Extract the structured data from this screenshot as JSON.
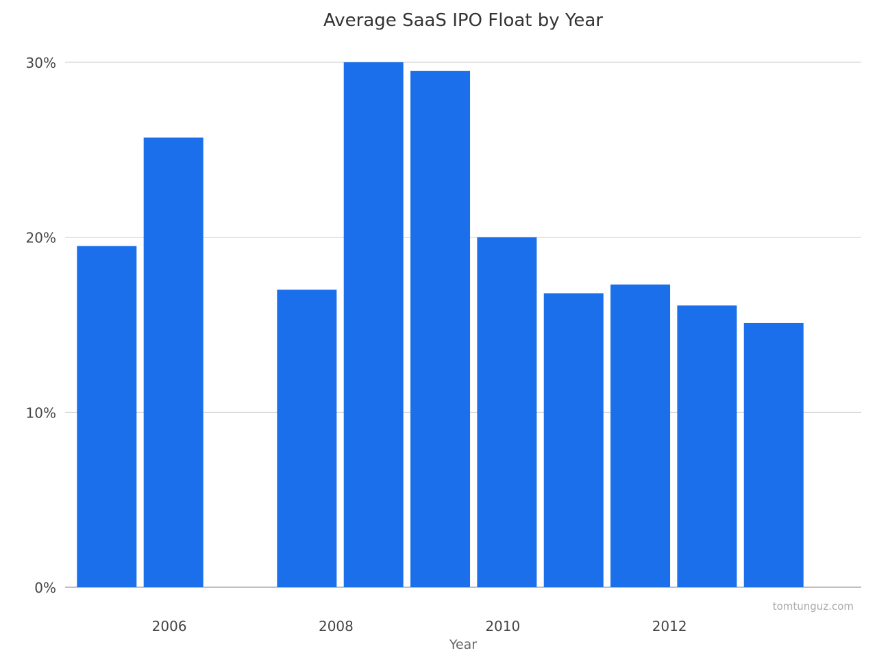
{
  "chart_data": {
    "type": "bar",
    "title": "Average SaaS IPO Float by Year",
    "xlabel": "Year",
    "ylabel": "",
    "watermark": "tomtunguz.com",
    "x_tick_labels": [
      "2006",
      "2008",
      "2010",
      "2012"
    ],
    "x_tick_values": [
      2006,
      2008,
      2010,
      2012
    ],
    "y_tick_labels": [
      "0%",
      "10%",
      "20%",
      "30%"
    ],
    "y_tick_values": [
      0,
      10,
      20,
      30
    ],
    "ylim": [
      0,
      30
    ],
    "xlim": [
      2004.75,
      2014.3
    ],
    "grid": true,
    "legend": "none",
    "bar_color": "#1b6fea",
    "x": [
      2005.25,
      2006.05,
      2007.65,
      2008.45,
      2009.25,
      2010.05,
      2010.85,
      2011.65,
      2012.45,
      2013.25
    ],
    "values": [
      19.5,
      25.7,
      17.0,
      30.0,
      29.5,
      20.0,
      16.8,
      17.3,
      16.1,
      15.1
    ]
  }
}
